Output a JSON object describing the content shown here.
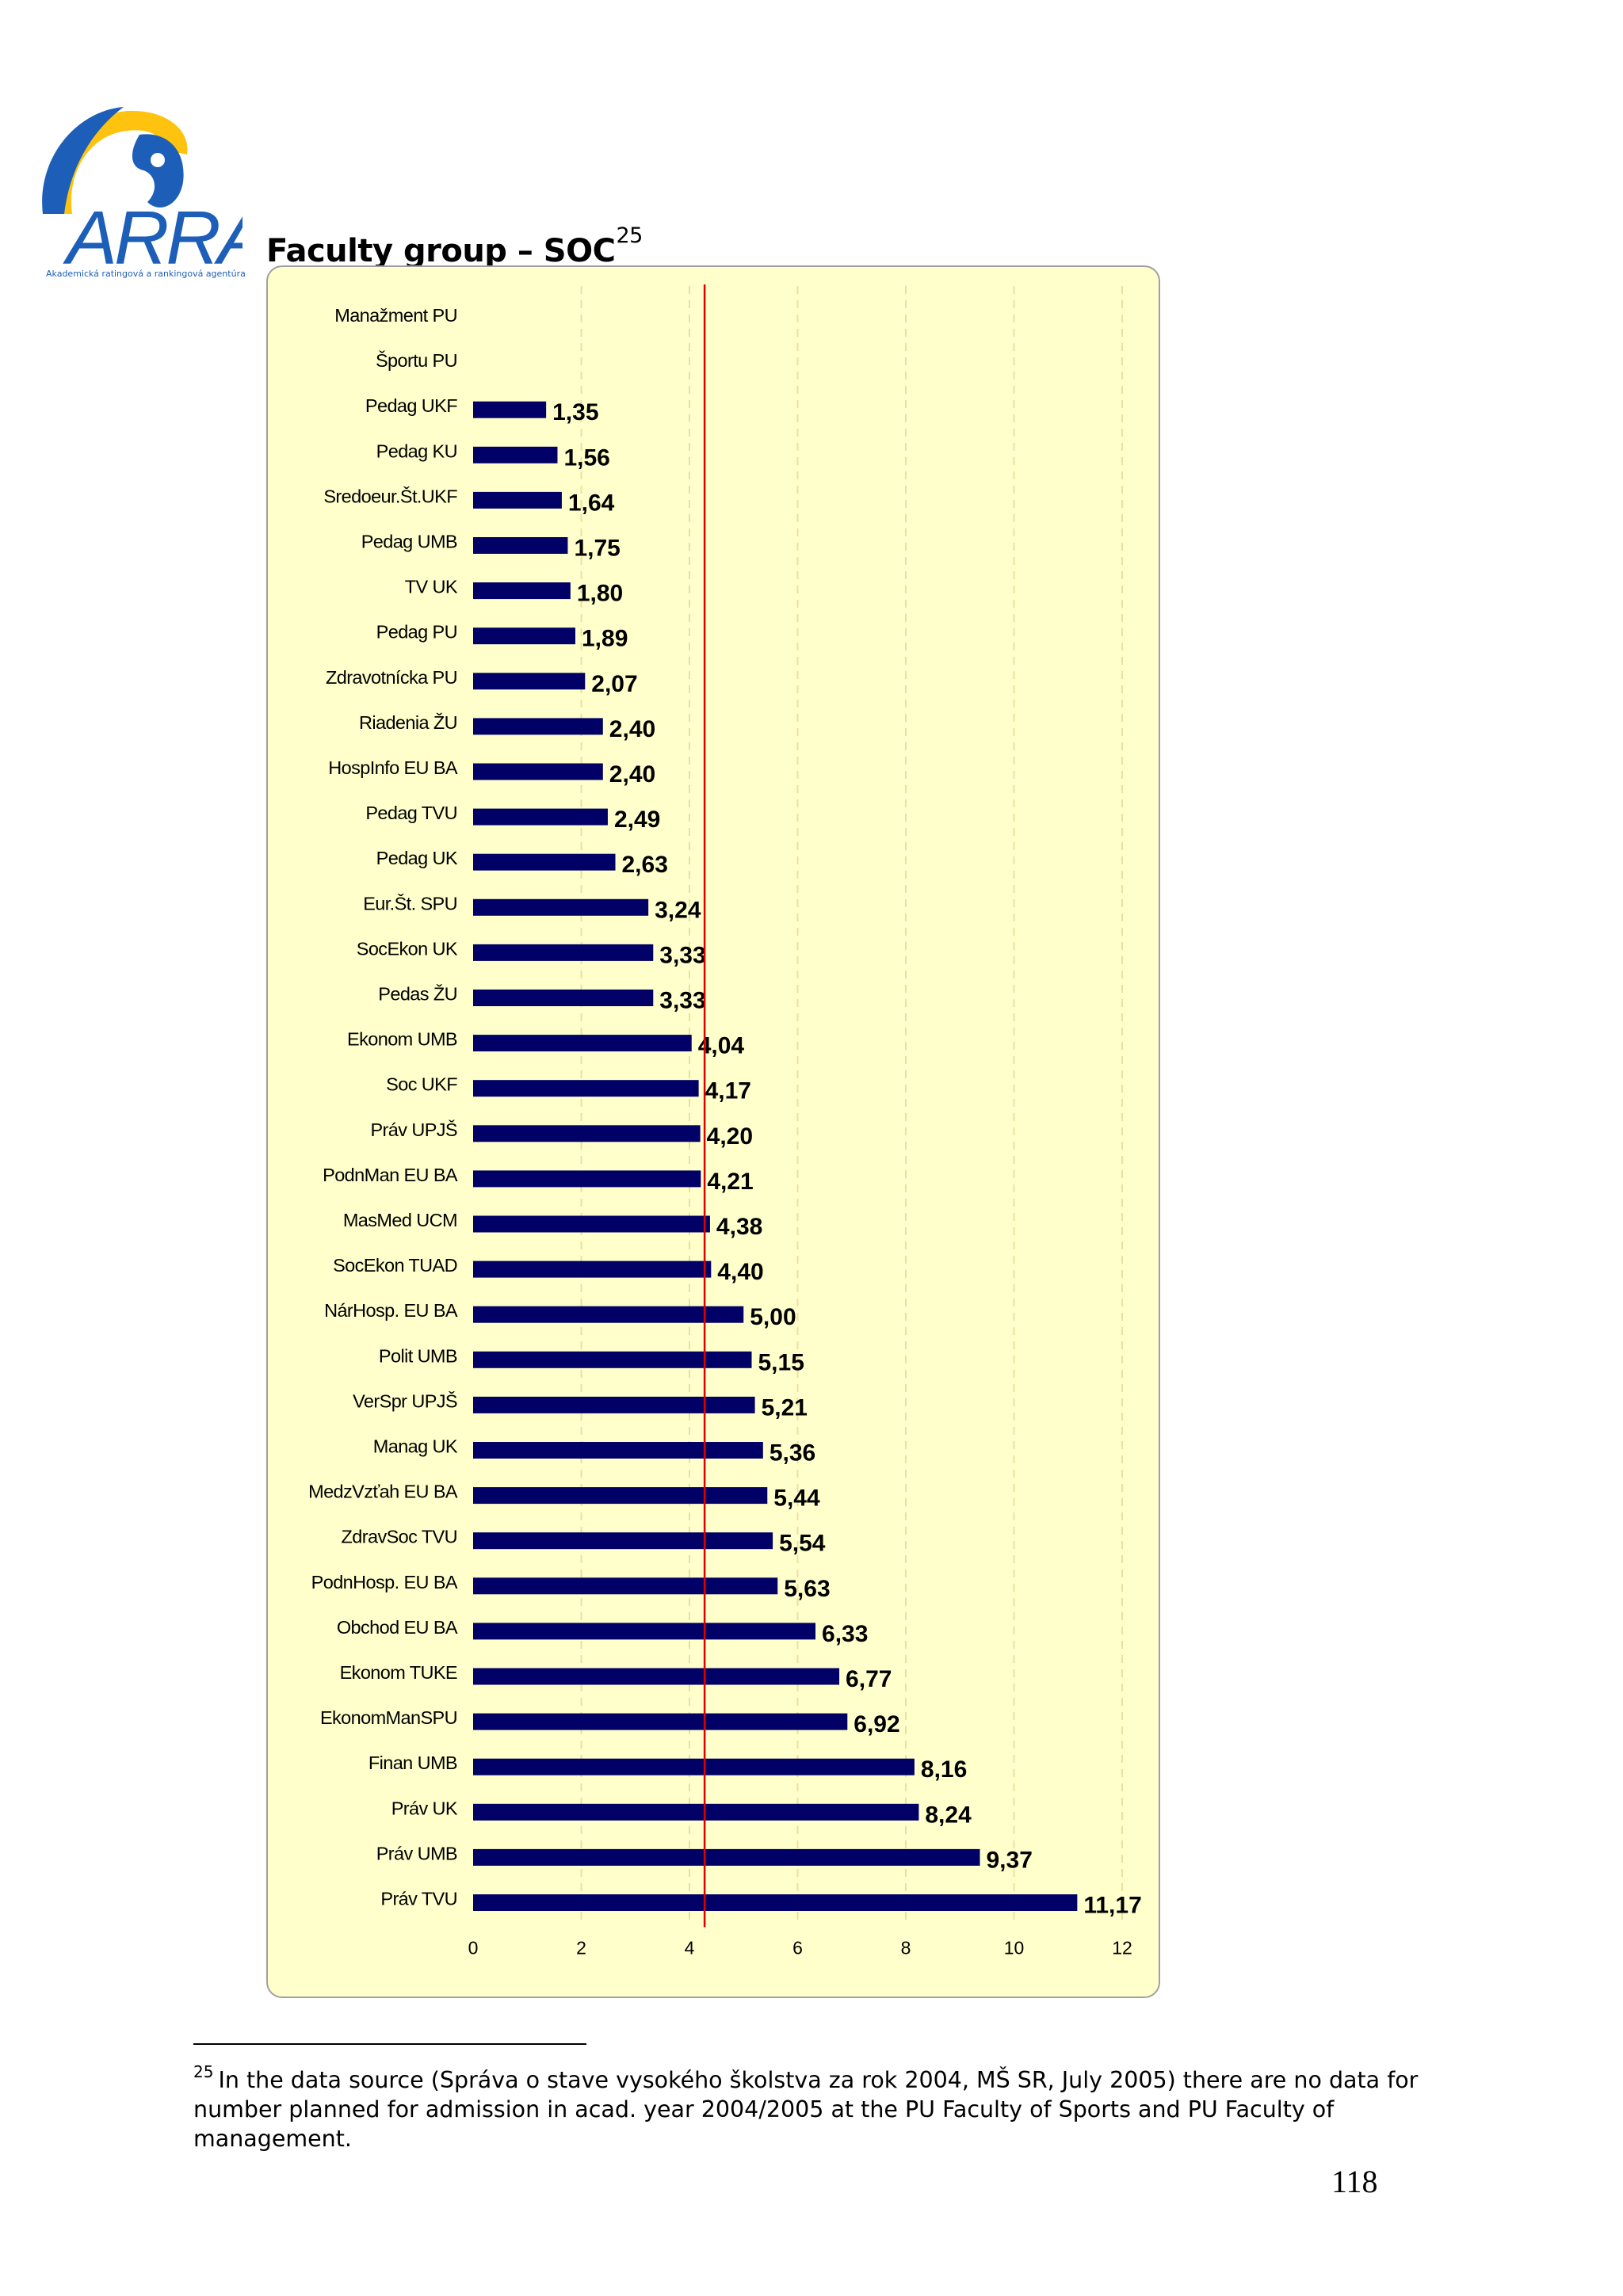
{
  "logo": {
    "text": "ARRA",
    "subtitle": "Akademická ratingová a rankingová agentúra",
    "colors": {
      "blue": "#1d5fb8",
      "yellow": "#ffc20e"
    }
  },
  "page_title": {
    "text": "Faculty group – SOC",
    "footnote_ref": "25"
  },
  "chart_data": {
    "type": "bar",
    "orientation": "horizontal",
    "title": "",
    "xlabel": "",
    "ylabel": "",
    "categories": [
      "Manažment PU",
      "Športu PU",
      "Pedag UKF",
      "Pedag KU",
      "Sredoeur.Št.UKF",
      "Pedag UMB",
      "TV  UK",
      "Pedag PU",
      "Zdravotnícka PU",
      "Riadenia  ŽU",
      "HospInfo EU BA",
      "Pedag TVU",
      "Pedag UK",
      "Eur.Št. SPU",
      "SocEkon UK",
      "Pedas ŽU",
      "Ekonom UMB",
      "Soc UKF",
      "Práv UPJŠ",
      "PodnMan EU BA",
      "MasMed UCM",
      "SocEkon TUAD",
      "NárHosp. EU BA",
      "Polit UMB",
      "VerSpr UPJŠ",
      "Manag UK",
      "MedzVzťah EU BA",
      "ZdravSoc TVU",
      "PodnHosp. EU BA",
      "Obchod EU BA",
      "Ekonom TUKE",
      "EkonomManSPU",
      "Finan UMB",
      "Práv UK",
      "Práv UMB",
      "Práv TVU"
    ],
    "values": [
      null,
      null,
      1.35,
      1.56,
      1.64,
      1.75,
      1.8,
      1.89,
      2.07,
      2.4,
      2.4,
      2.49,
      2.63,
      3.24,
      3.33,
      3.33,
      4.04,
      4.17,
      4.2,
      4.21,
      4.38,
      4.4,
      5.0,
      5.15,
      5.21,
      5.36,
      5.44,
      5.54,
      5.63,
      6.33,
      6.77,
      6.92,
      8.16,
      8.24,
      9.37,
      11.17
    ],
    "value_labels": [
      "",
      "",
      "1,35",
      "1,56",
      "1,64",
      "1,75",
      "1,80",
      "1,89",
      "2,07",
      "2,40",
      "2,40",
      "2,49",
      "2,63",
      "3,24",
      "3,33",
      "3,33",
      "4,04",
      "4,17",
      "4,20",
      "4,21",
      "4,38",
      "4,40",
      "5,00",
      "5,15",
      "5,21",
      "5,36",
      "5,44",
      "5,54",
      "5,63",
      "6,33",
      "6,77",
      "6,92",
      "8,16",
      "8,24",
      "9,37",
      "11,17"
    ],
    "xlim": [
      0,
      12
    ],
    "xticks": [
      0,
      2,
      4,
      6,
      8,
      10,
      12
    ],
    "grid": "vertical dashed",
    "reference_line": 4.28,
    "colors": {
      "bar": "#000066",
      "reference_line": "#e00000",
      "background": "#ffffcc",
      "grid": "#e8e0a0"
    }
  },
  "footnote": {
    "number": "25",
    "text": "In the data source (Správa o stave vysokého školstva za rok 2004, MŠ SR, July 2005) there are no data for number planned for admission in acad. year 2004/2005 at the PU Faculty of Sports and PU Faculty of management."
  },
  "page_number": "118"
}
